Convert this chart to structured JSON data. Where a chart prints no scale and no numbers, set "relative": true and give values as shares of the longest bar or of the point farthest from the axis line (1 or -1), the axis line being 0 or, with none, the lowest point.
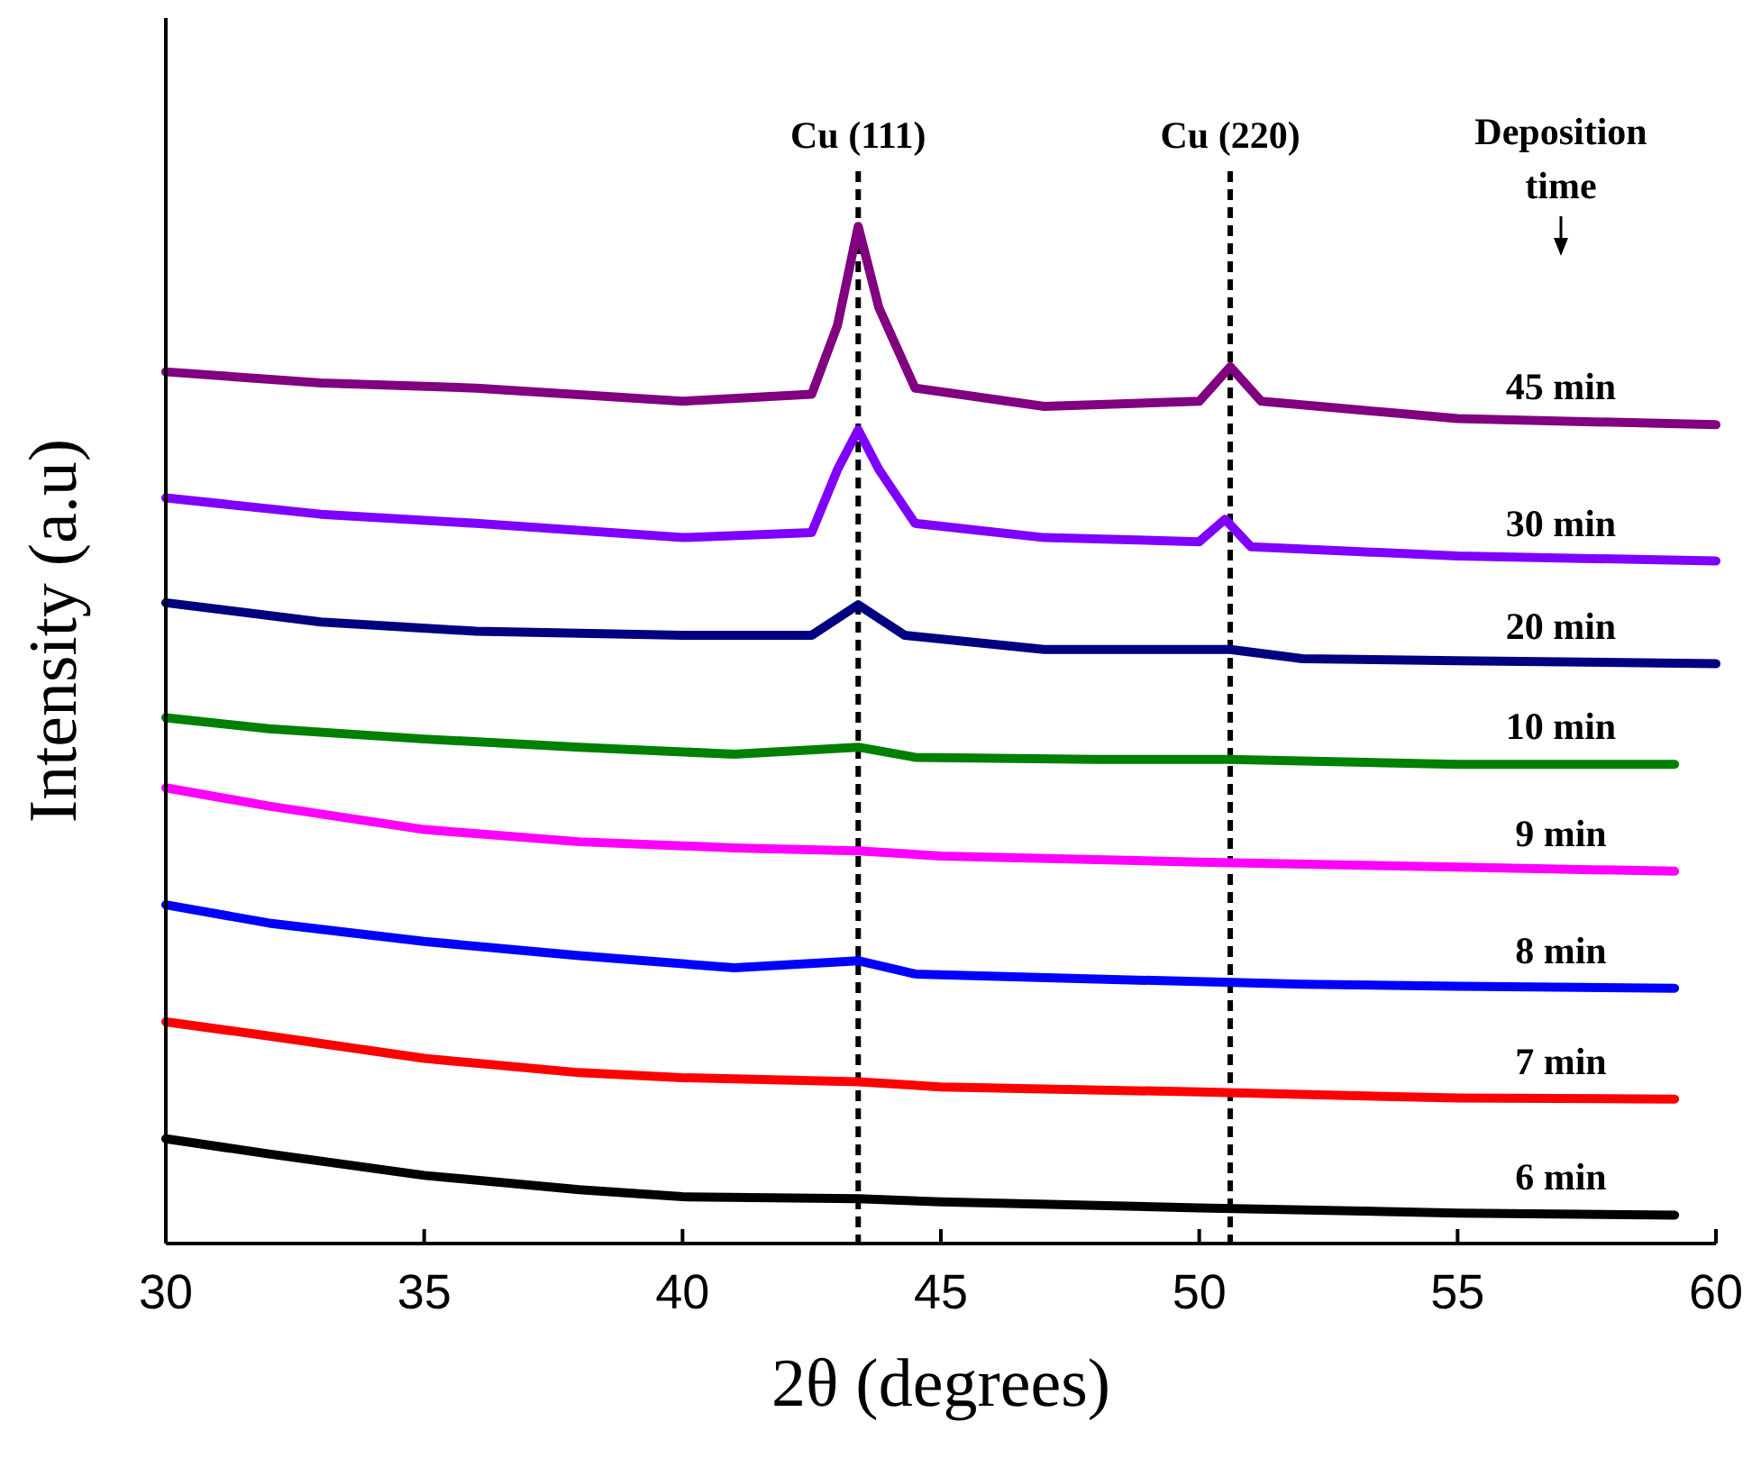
{
  "chart_data": {
    "type": "line",
    "relative": true,
    "xlabel": "2θ (degrees)",
    "ylabel": "Intensity (a.u)",
    "legend_title": "Deposition time",
    "xlim": [
      30,
      60
    ],
    "xticks": [
      30,
      35,
      40,
      45,
      50,
      55,
      60
    ],
    "ref_lines": [
      {
        "axis": "x",
        "value": 43.4,
        "label": "Cu (111)",
        "line_style": "dashed",
        "color": "#000000"
      },
      {
        "axis": "x",
        "value": 50.6,
        "label": "Cu (220)",
        "line_style": "dashed",
        "color": "#000000"
      }
    ],
    "series": [
      {
        "name": "6 min",
        "color": "#000000",
        "x": [
          30,
          32,
          35,
          38,
          40,
          43.4,
          45,
          50,
          55,
          59.2
        ],
        "values": [
          0.103,
          0.088,
          0.067,
          0.053,
          0.046,
          0.044,
          0.041,
          0.035,
          0.03,
          0.028
        ]
      },
      {
        "name": "7 min",
        "color": "#ff0000",
        "x": [
          30,
          32,
          35,
          38,
          40,
          43.4,
          45,
          50,
          55,
          59.2
        ],
        "values": [
          0.218,
          0.204,
          0.182,
          0.168,
          0.163,
          0.159,
          0.154,
          0.149,
          0.143,
          0.142
        ]
      },
      {
        "name": "8 min",
        "color": "#0000ff",
        "x": [
          30,
          32,
          35,
          38,
          41,
          43.4,
          44.5,
          48,
          52,
          55,
          59.2
        ],
        "values": [
          0.333,
          0.315,
          0.297,
          0.283,
          0.271,
          0.278,
          0.265,
          0.26,
          0.255,
          0.253,
          0.251
        ]
      },
      {
        "name": "9 min",
        "color": "#ff00ff",
        "x": [
          30,
          32,
          35,
          38,
          41,
          43.4,
          45,
          50,
          55,
          59.2
        ],
        "values": [
          0.448,
          0.43,
          0.407,
          0.395,
          0.389,
          0.386,
          0.381,
          0.375,
          0.37,
          0.366
        ]
      },
      {
        "name": "10 min",
        "color": "#008000",
        "x": [
          30,
          32,
          35,
          38,
          41,
          43.4,
          44.5,
          48,
          50.6,
          55,
          59.2
        ],
        "values": [
          0.517,
          0.506,
          0.496,
          0.488,
          0.481,
          0.488,
          0.478,
          0.476,
          0.476,
          0.471,
          0.471
        ]
      },
      {
        "name": "20 min",
        "color": "#000080",
        "x": [
          30,
          33,
          36,
          40,
          42.5,
          43.4,
          44.3,
          47,
          50.6,
          52,
          55,
          60
        ],
        "values": [
          0.63,
          0.611,
          0.602,
          0.598,
          0.598,
          0.628,
          0.598,
          0.584,
          0.584,
          0.575,
          0.573,
          0.57
        ]
      },
      {
        "name": "30 min",
        "color": "#8000ff",
        "x": [
          30,
          33,
          36,
          40,
          42.5,
          43,
          43.4,
          43.8,
          44.5,
          47,
          50,
          50.5,
          51,
          55,
          60
        ],
        "values": [
          0.733,
          0.717,
          0.708,
          0.694,
          0.699,
          0.761,
          0.8,
          0.761,
          0.708,
          0.694,
          0.69,
          0.712,
          0.685,
          0.676,
          0.671
        ]
      },
      {
        "name": "45 min",
        "color": "#800080",
        "x": [
          30,
          33,
          36,
          40,
          42.5,
          43,
          43.4,
          43.8,
          44.5,
          47,
          50,
          50.6,
          51.2,
          55,
          60
        ],
        "values": [
          0.857,
          0.846,
          0.841,
          0.828,
          0.835,
          0.903,
          1,
          0.92,
          0.841,
          0.823,
          0.828,
          0.862,
          0.828,
          0.811,
          0.805
        ]
      }
    ]
  }
}
